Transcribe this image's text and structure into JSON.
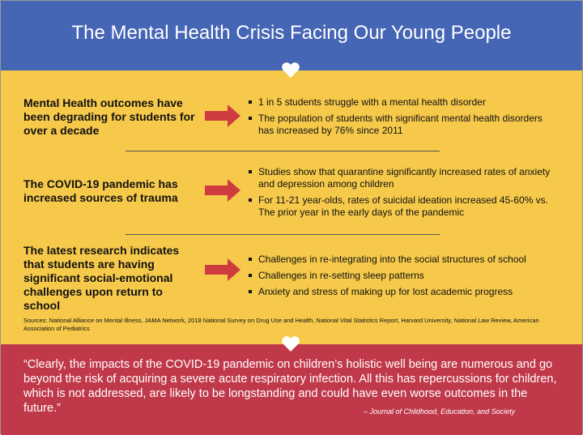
{
  "header": {
    "title": "The Mental Health Crisis Facing Our Young People"
  },
  "sections": [
    {
      "lead": "Mental Health outcomes have been degrading for students for over a decade",
      "points": [
        "1 in 5 students struggle with a mental health disorder",
        "The population of students with significant mental health disorders has increased by 76% since 2011"
      ]
    },
    {
      "lead": "The COVID-19 pandemic has increased sources of trauma",
      "points": [
        "Studies show that quarantine significantly increased rates of anxiety and depression among children",
        "For 11-21 year-olds, rates of suicidal ideation increased 45-60% vs. The prior year in the early days of the pandemic"
      ]
    },
    {
      "lead": "The latest research indicates that students are having significant social-emotional challenges upon return to school",
      "points": [
        "Challenges in re-integrating into the social structures of school",
        "Challenges in re-setting sleep patterns",
        "Anxiety and stress of making up for lost academic progress"
      ]
    }
  ],
  "sources": "Sources: National Alliance on Mental Illness, JAMA Network, 2018 National Survey on Drug Use and Health, National Vital Statistics Report, Harvard University, National Law Review, American Association of Pediatrics",
  "quote": {
    "text": "“Clearly, the impacts of the COVID-19 pandemic on children’s holistic well being are numerous and go beyond the risk of acquiring a severe acute respiratory infection. All this has repercussions for children, which is not addressed, are likely to be longstanding and could have even worse outcomes in the future.”",
    "citation": "– Journal of Childhood, Education, and Society"
  }
}
